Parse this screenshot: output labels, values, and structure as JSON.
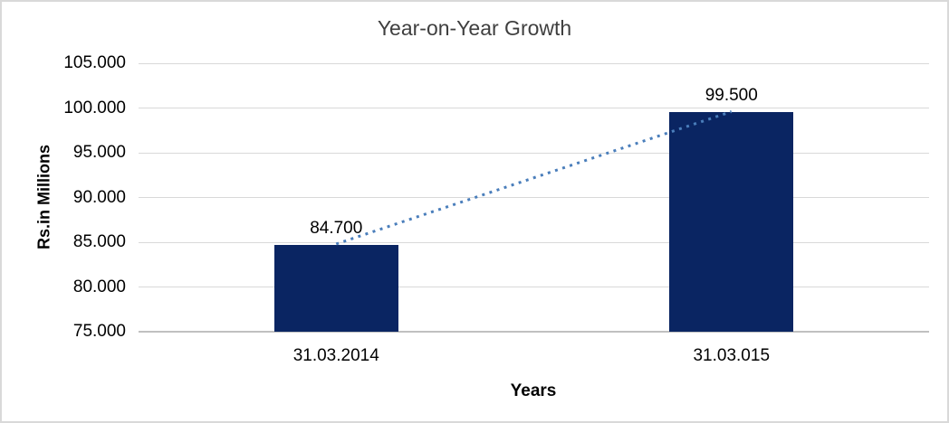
{
  "chart_data": {
    "type": "bar",
    "title": "Year-on-Year Growth",
    "xlabel": "Years",
    "ylabel": "Rs.in Millions",
    "categories": [
      "31.03.2014",
      "31.03.015"
    ],
    "values": [
      84.7,
      99.5
    ],
    "value_labels": [
      "84.700",
      "99.500"
    ],
    "ytick_labels": [
      "105.000",
      "100.000",
      "95.000",
      "90.000",
      "85.000",
      "80.000",
      "75.000"
    ],
    "ytick_values": [
      105,
      100,
      95,
      90,
      85,
      80,
      75
    ],
    "ylim": [
      75,
      105
    ],
    "grid": "horizontal",
    "legend": "none",
    "bar_color": "#0a2562",
    "trendline": {
      "style": "dotted",
      "color": "#4a7ebb",
      "from": {
        "category": "31.03.2014",
        "value": 84.7
      },
      "to": {
        "category": "31.03.015",
        "value": 99.5
      }
    },
    "frame_border_color": "#d9d9d9",
    "gridline_color": "#d9d9d9"
  }
}
